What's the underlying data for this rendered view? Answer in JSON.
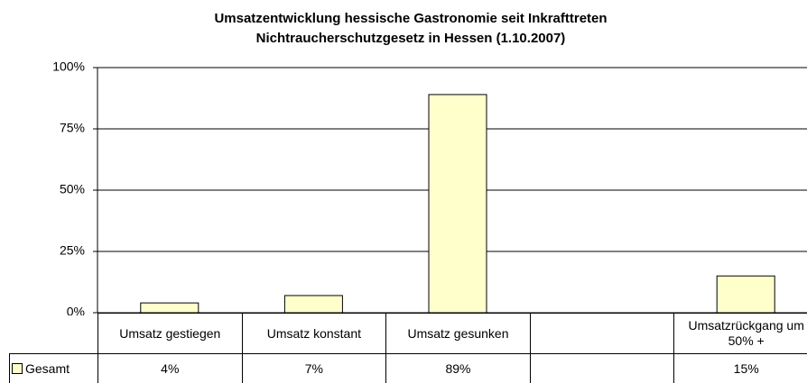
{
  "chart_data": {
    "type": "bar",
    "title": [
      "Umsatzentwicklung hessische Gastronomie seit Inkrafttreten",
      "Nichtraucherschutzgesetz in Hessen (1.10.2007)"
    ],
    "categories": [
      "Umsatz gestiegen",
      "Umsatz konstant",
      "Umsatz gesunken",
      null,
      "Umsatzrückgang um 50% +"
    ],
    "series": [
      {
        "name": "Gesamt",
        "color": "#ffffcc",
        "values": [
          4,
          7,
          89,
          null,
          15
        ],
        "value_labels": [
          "4%",
          "7%",
          "89%",
          null,
          "15%"
        ]
      }
    ],
    "ylim": [
      0,
      100
    ],
    "yticks": [
      {
        "value": 0,
        "label": "0%"
      },
      {
        "value": 25,
        "label": "25%"
      },
      {
        "value": 50,
        "label": "50%"
      },
      {
        "value": 75,
        "label": "75%"
      },
      {
        "value": 100,
        "label": "100%"
      }
    ],
    "grid": true,
    "data_table": true
  }
}
